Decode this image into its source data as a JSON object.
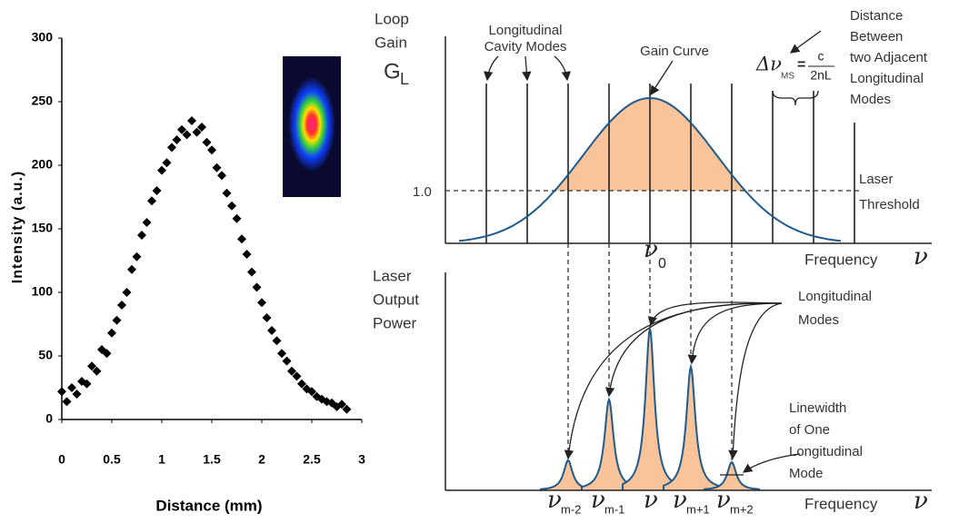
{
  "chart_data": {
    "type": "scatter",
    "xlabel": "Distance (mm)",
    "ylabel": "Intensity (a.u.)",
    "x": [
      0,
      0.05,
      0.1,
      0.15,
      0.2,
      0.25,
      0.3,
      0.35,
      0.4,
      0.45,
      0.5,
      0.55,
      0.6,
      0.65,
      0.7,
      0.75,
      0.8,
      0.85,
      0.9,
      0.95,
      1,
      1.05,
      1.1,
      1.15,
      1.2,
      1.25,
      1.3,
      1.35,
      1.4,
      1.45,
      1.5,
      1.55,
      1.6,
      1.65,
      1.7,
      1.75,
      1.8,
      1.85,
      1.9,
      1.95,
      2,
      2.05,
      2.1,
      2.15,
      2.2,
      2.25,
      2.3,
      2.35,
      2.4,
      2.45,
      2.5,
      2.55,
      2.6,
      2.65,
      2.7,
      2.75,
      2.8,
      2.85
    ],
    "values": [
      22,
      14,
      25,
      20,
      30,
      28,
      42,
      38,
      55,
      52,
      68,
      78,
      90,
      100,
      118,
      128,
      145,
      155,
      172,
      180,
      196,
      202,
      214,
      220,
      228,
      224,
      235,
      226,
      230,
      218,
      212,
      198,
      192,
      178,
      168,
      158,
      142,
      130,
      116,
      104,
      92,
      80,
      70,
      62,
      52,
      46,
      38,
      34,
      28,
      24,
      22,
      18,
      16,
      14,
      13,
      10,
      12,
      8
    ],
    "color": "#000000",
    "marker": "diamond",
    "xlim": [
      0,
      3
    ],
    "xticks": [
      0,
      0.5,
      1,
      1.5,
      2,
      2.5,
      3
    ],
    "ylim": [
      0,
      300
    ],
    "yticks": [
      0,
      50,
      100,
      150,
      200,
      250,
      300
    ],
    "grid": false
  },
  "diagram": {
    "gain_panel": {
      "axis_label": [
        "Loop",
        "Gain"
      ],
      "symbol": "G",
      "symbol_sub": "L",
      "modes_label": [
        "Longitudinal",
        "Cavity Modes"
      ],
      "curve_label": "Gain Curve",
      "spacing_label": [
        "Distance",
        "Between",
        "two Adjacent",
        "Longitudinal",
        "Modes"
      ],
      "spacing_formula": {
        "symbol": "Δν",
        "sub": "MS",
        "equals": "=",
        "numerator": "c",
        "denominator": "2nL"
      },
      "threshold_value": "1.0",
      "threshold_label": [
        "Laser",
        "Threshold"
      ],
      "x_label": "Frequency",
      "x_symbol": "ν",
      "center": "ν",
      "center_sub": "0"
    },
    "output_panel": {
      "axis_label": [
        "Laser",
        "Output",
        "Power"
      ],
      "modes_label": [
        "Longitudinal",
        "Modes"
      ],
      "linewidth_label": [
        "Linewidth",
        "of One",
        "Longitudinal",
        "Mode"
      ],
      "peaks": [
        {
          "symbol": "ν",
          "sub": "m-2"
        },
        {
          "symbol": "ν",
          "sub": "m-1"
        },
        {
          "symbol": "ν"
        },
        {
          "symbol": "ν",
          "sub": "m+1"
        },
        {
          "symbol": "ν",
          "sub": "m+2"
        }
      ],
      "x_label": "Frequency",
      "x_symbol": "ν"
    }
  }
}
